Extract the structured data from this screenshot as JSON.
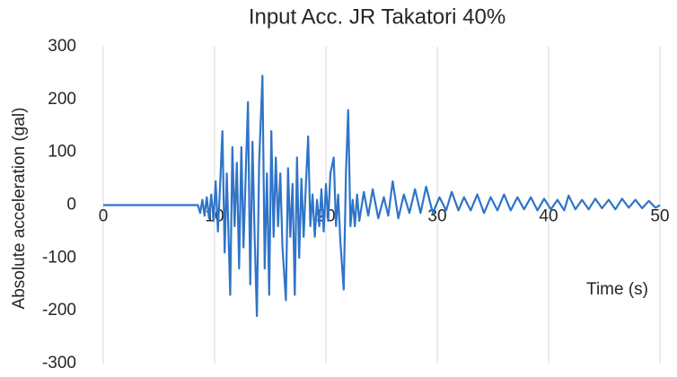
{
  "chart_data": {
    "type": "line",
    "title": "Input Acc. JR Takatori 40%",
    "x_label": "Time (s)",
    "y_label": "Absolute acceleration (gal)",
    "xlim": [
      0,
      50
    ],
    "xticks": [
      0,
      10,
      20,
      30,
      40,
      50
    ],
    "ylim": [
      -300,
      300
    ],
    "yticks": [
      -300,
      -200,
      -100,
      0,
      100,
      200,
      300
    ],
    "grid": "x",
    "series": [
      {
        "name": "Input Acc.",
        "color": "#2f74c8",
        "x": [
          0,
          8.5,
          8.7,
          8.9,
          9.1,
          9.3,
          9.5,
          9.7,
          9.9,
          10.1,
          10.3,
          10.5,
          10.7,
          10.9,
          11.1,
          11.4,
          11.6,
          11.8,
          12.0,
          12.2,
          12.4,
          12.6,
          12.8,
          13.0,
          13.2,
          13.4,
          13.6,
          13.8,
          14.0,
          14.3,
          14.5,
          14.7,
          14.9,
          15.1,
          15.3,
          15.5,
          15.7,
          15.9,
          16.1,
          16.4,
          16.6,
          16.8,
          17.0,
          17.2,
          17.4,
          17.6,
          17.8,
          18.0,
          18.2,
          18.4,
          18.6,
          18.8,
          19.0,
          19.2,
          19.4,
          19.6,
          19.8,
          20.0,
          20.2,
          20.4,
          20.7,
          20.9,
          21.1,
          21.3,
          21.6,
          21.8,
          22.0,
          22.2,
          22.4,
          22.6,
          22.8,
          23.0,
          23.4,
          23.8,
          24.2,
          24.7,
          25.2,
          25.6,
          26.0,
          26.5,
          27.0,
          27.5,
          28.0,
          28.5,
          29.0,
          29.6,
          30.2,
          30.8,
          31.3,
          31.9,
          32.4,
          33.0,
          33.6,
          34.2,
          34.8,
          35.4,
          36.0,
          36.6,
          37.2,
          37.8,
          38.4,
          39.0,
          39.6,
          40.2,
          40.8,
          41.4,
          41.8,
          42.4,
          43.0,
          43.6,
          44.2,
          44.8,
          45.4,
          46.0,
          46.6,
          47.2,
          47.8,
          48.4,
          49.0,
          49.6,
          50
        ],
        "values": [
          0,
          0,
          -15,
          10,
          -20,
          15,
          -25,
          20,
          -30,
          45,
          -50,
          40,
          140,
          -90,
          60,
          -170,
          110,
          -40,
          80,
          -120,
          110,
          -80,
          60,
          195,
          -150,
          120,
          -60,
          -210,
          80,
          245,
          -120,
          60,
          -170,
          140,
          -60,
          90,
          -40,
          60,
          -80,
          -180,
          70,
          -60,
          40,
          -170,
          90,
          -100,
          50,
          -60,
          40,
          130,
          -40,
          20,
          -60,
          10,
          -40,
          30,
          -50,
          40,
          -30,
          60,
          90,
          -40,
          20,
          -70,
          -160,
          60,
          180,
          -40,
          10,
          -40,
          20,
          -30,
          25,
          -20,
          30,
          -25,
          15,
          -20,
          45,
          -25,
          20,
          -15,
          30,
          -15,
          35,
          -15,
          15,
          -10,
          25,
          -10,
          15,
          -10,
          20,
          -15,
          15,
          -10,
          20,
          -10,
          15,
          -8,
          15,
          -10,
          12,
          -8,
          10,
          -10,
          18,
          -8,
          10,
          -8,
          12,
          -6,
          10,
          -8,
          12,
          -5,
          10,
          -6,
          8,
          -5,
          0
        ]
      }
    ]
  }
}
